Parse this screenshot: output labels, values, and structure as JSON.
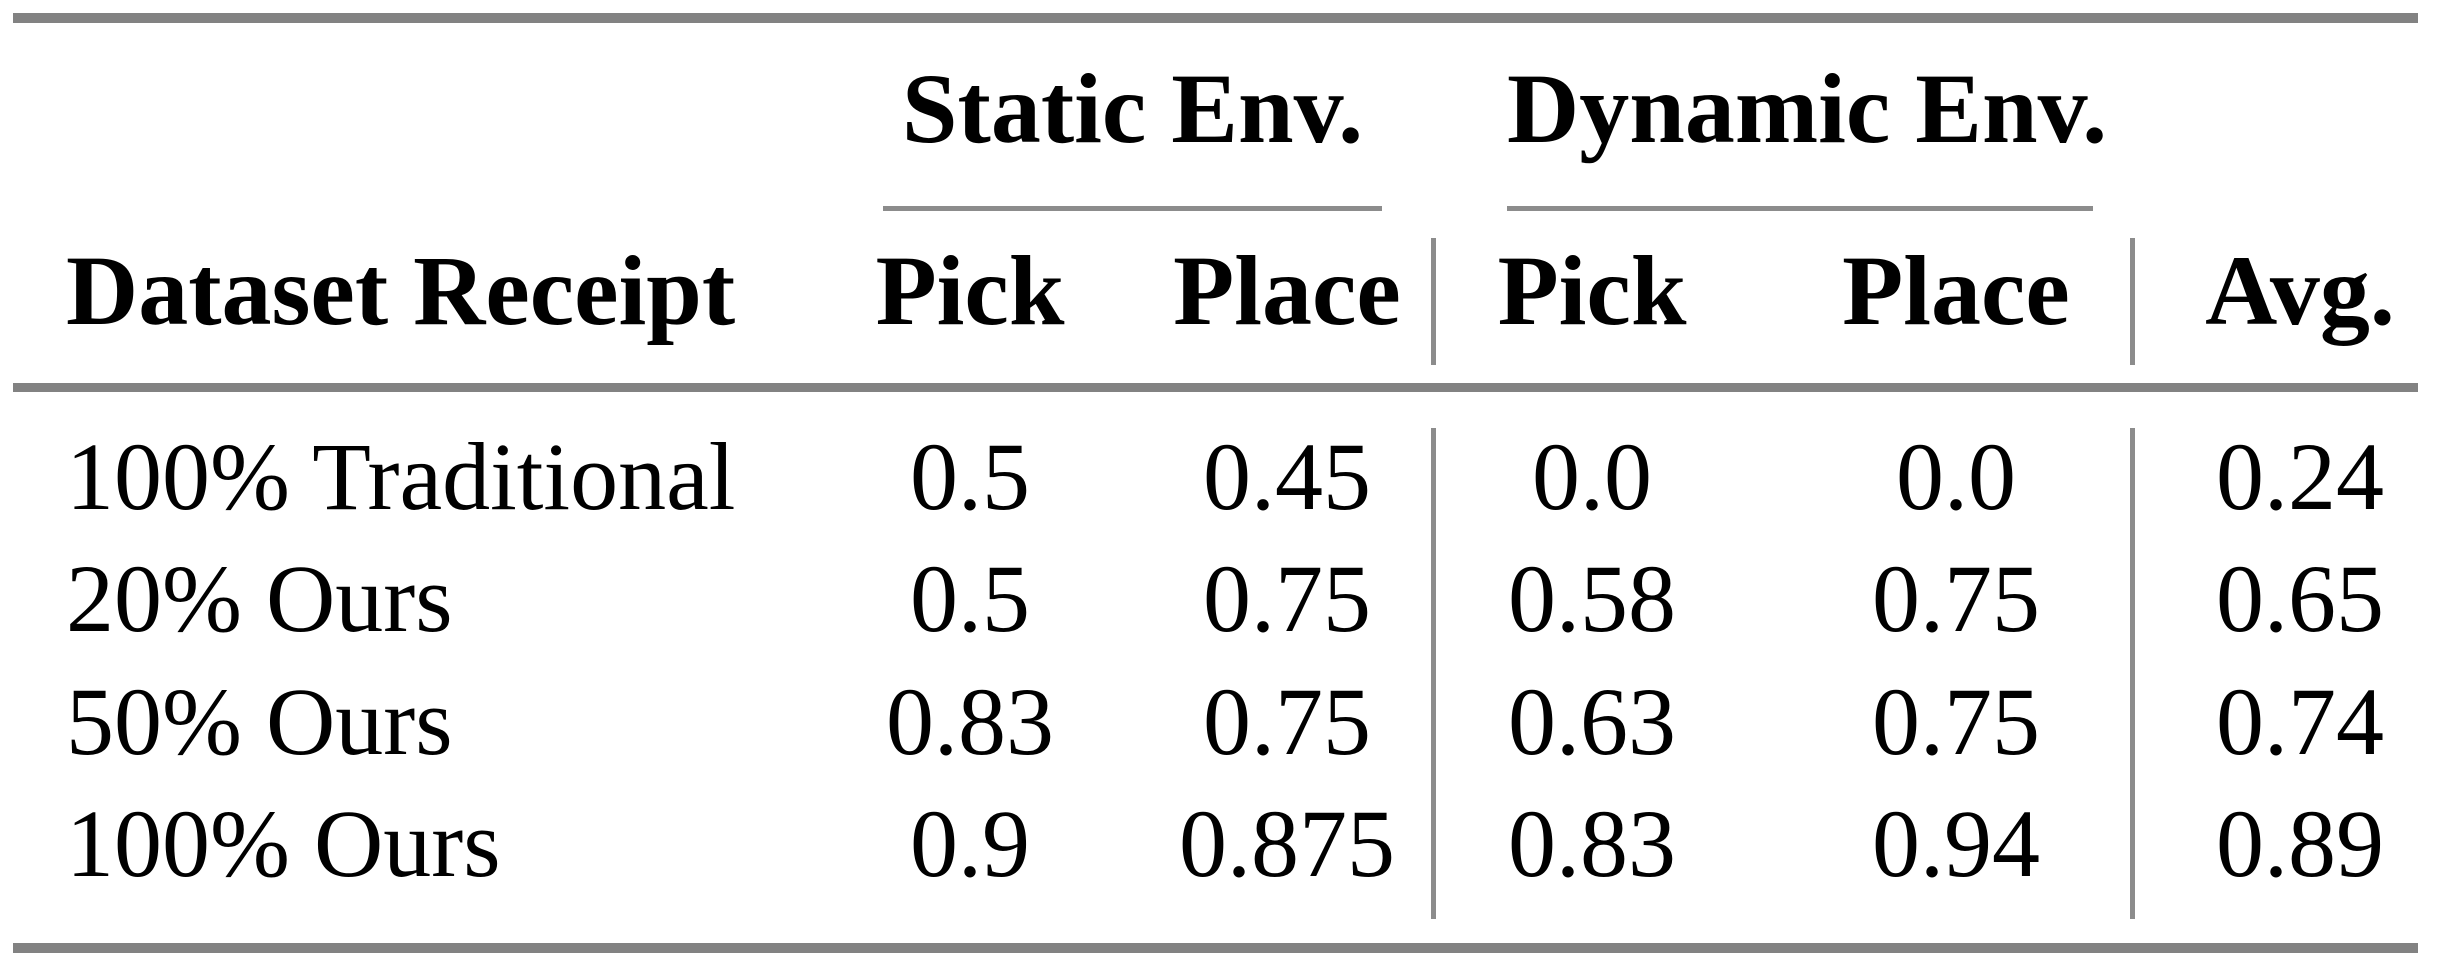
{
  "table": {
    "column_groups": [
      {
        "label": "Static Env."
      },
      {
        "label": "Dynamic Env."
      }
    ],
    "corner_header": "Dataset Receipt",
    "sub_headers": {
      "static_pick": "Pick",
      "static_place": "Place",
      "dynamic_pick": "Pick",
      "dynamic_place": "Place",
      "avg": "Avg."
    },
    "rows": [
      {
        "label": "100% Traditional",
        "static_pick": "0.5",
        "static_place": "0.45",
        "dynamic_pick": "0.0",
        "dynamic_place": "0.0",
        "avg": "0.24"
      },
      {
        "label": "20% Ours",
        "static_pick": "0.5",
        "static_place": "0.75",
        "dynamic_pick": "0.58",
        "dynamic_place": "0.75",
        "avg": "0.65"
      },
      {
        "label": "50% Ours",
        "static_pick": "0.83",
        "static_place": "0.75",
        "dynamic_pick": "0.63",
        "dynamic_place": "0.75",
        "avg": "0.74"
      },
      {
        "label": "100% Ours",
        "static_pick": "0.9",
        "static_place": "0.875",
        "dynamic_pick": "0.83",
        "dynamic_place": "0.94",
        "avg": "0.89"
      }
    ],
    "colors": {
      "rule_gray_thick": "#828282",
      "rule_gray_thin": "#8c8c8c",
      "text": "#000000",
      "background": "#ffffff"
    }
  }
}
